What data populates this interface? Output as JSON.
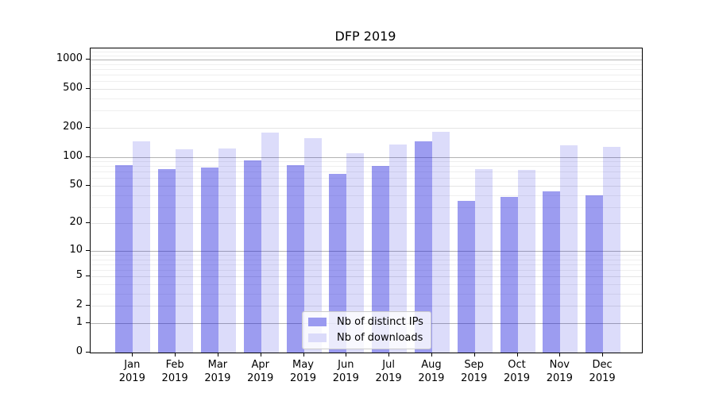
{
  "title": "DFP 2019",
  "legend": {
    "entries": [
      {
        "label": "Nb of distinct IPs",
        "color": "#9a9af0"
      },
      {
        "label": "Nb of downloads",
        "color": "#dbdbfa"
      }
    ]
  },
  "chart_data": {
    "type": "bar",
    "title": "DFP 2019",
    "categories": [
      "Jan",
      "Feb",
      "Mar",
      "Apr",
      "May",
      "Jun",
      "Jul",
      "Aug",
      "Sep",
      "Oct",
      "Nov",
      "Dec"
    ],
    "year_label": "2019",
    "series": [
      {
        "name": "Nb of distinct IPs",
        "color_hex": "#9a9af0",
        "color_rgba": "rgba(20,20,220,0.42)",
        "values": [
          82,
          74,
          78,
          92,
          82,
          67,
          80,
          146,
          35,
          38,
          44,
          40
        ]
      },
      {
        "name": "Nb of downloads",
        "color_hex": "#dbdbfa",
        "color_rgba": "rgba(20,20,220,0.15)",
        "values": [
          146,
          120,
          121,
          178,
          155,
          108,
          135,
          181,
          75,
          73,
          131,
          126
        ]
      }
    ],
    "xlabel": "",
    "ylabel": "",
    "yscale": "log10(1+y)",
    "yticks": [
      0,
      1,
      2,
      5,
      10,
      20,
      50,
      100,
      200,
      500,
      1000
    ],
    "ylim": [
      0,
      1300
    ],
    "grid": "horizontal",
    "legend_position": "lower center"
  }
}
